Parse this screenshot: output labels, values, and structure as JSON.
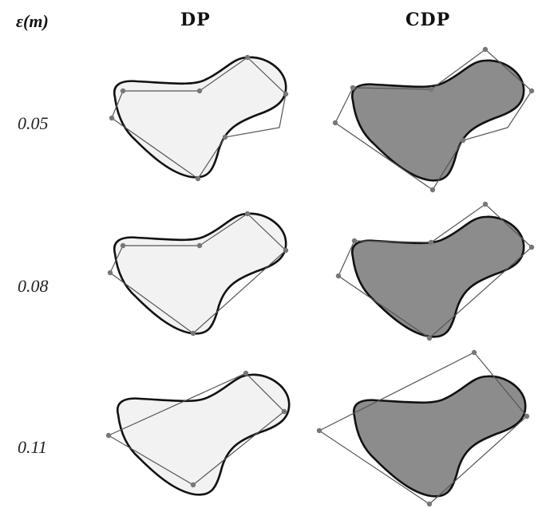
{
  "header": {
    "epsilon_label": "ε(m)",
    "col_dp": "DP",
    "col_cdp": "CDP"
  },
  "rows": [
    {
      "epsilon": "0.05"
    },
    {
      "epsilon": "0.08"
    },
    {
      "epsilon": "0.11"
    }
  ],
  "colors": {
    "dp_fill": "#f2f2f2",
    "cdp_fill": "#8c8c8c",
    "outline": "#111111",
    "polygon": "#555555",
    "vertex": "#777777"
  }
}
